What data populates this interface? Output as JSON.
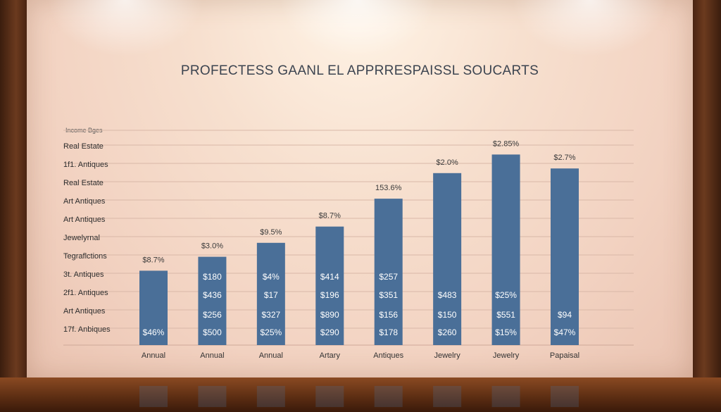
{
  "chart_data": {
    "type": "bar",
    "title": "PROFECTESS GAANL EL APPRRESPAISSL SOUCARTS",
    "ylabel": "Income Bges",
    "y_tick_labels": [
      "Real Estate",
      "1f1. Antiques",
      "Real Estate",
      "Art Antiques",
      "Art Antiques",
      "Jewelyrnal",
      "Tegraflctions",
      "3t. Antiques",
      "2f1. Antiques",
      "Art Antiques",
      "17f. Anbiques"
    ],
    "categories": [
      "Annual",
      "Annual",
      "Annual",
      "Artary",
      "Antiques",
      "Jewelry",
      "Jewelry",
      "Papaisal"
    ],
    "values": [
      3.2,
      3.8,
      4.4,
      5.1,
      6.3,
      7.4,
      8.2,
      7.6
    ],
    "ylim": [
      0,
      10
    ],
    "top_labels": [
      "$8.7%",
      "$3.0%",
      "$9.5%",
      "$8.7%",
      "153.6%",
      "$2.0%",
      "$2.85%",
      "$2.7%"
    ],
    "bar_labels": [
      [
        "$46%"
      ],
      [
        "$180",
        "$436",
        "$256",
        "$500"
      ],
      [
        "$4%",
        "$17",
        "$327",
        "$25%"
      ],
      [
        "$414",
        "$196",
        "$890",
        "$290"
      ],
      [
        "$257",
        "$351",
        "$156",
        "$178"
      ],
      [
        "$483",
        "$150",
        "$260"
      ],
      [
        "$25%",
        "$551",
        "$15%"
      ],
      [
        "$94",
        "$47%"
      ]
    ],
    "grid": true,
    "colors": {
      "bar": "#4a6f98",
      "grid": "#d9b8a8",
      "title": "#3c4450"
    }
  }
}
